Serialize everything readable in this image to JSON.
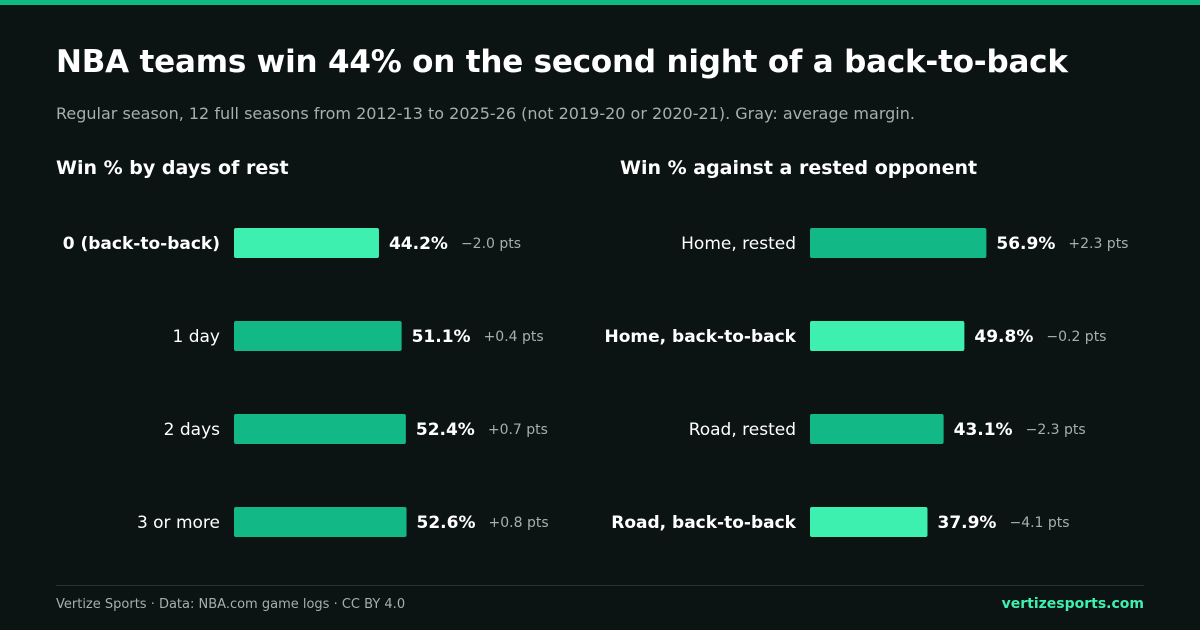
{
  "title": "NBA teams win 44% on the second night of a back-to-back",
  "subtitle": "Regular season, 12 full seasons from 2012-13 to 2025-26 (not 2019-20 or 2020-21). Gray: average margin.",
  "colors": {
    "background": "#0b1412",
    "accent": "#10b981",
    "highlight": "#3ef0b0",
    "bar_default": "#12b886",
    "bar_highlight": "#3ef0b0",
    "muted_text": "#a7afab"
  },
  "chart_data": [
    {
      "type": "bar",
      "orientation": "horizontal",
      "title": "Win % by days of rest",
      "categories": [
        "0 (back-to-back)",
        "1 day",
        "2 days",
        "3 or more"
      ],
      "values": [
        44.2,
        51.1,
        52.4,
        52.6
      ],
      "value_labels": [
        "44.2%",
        "51.1%",
        "52.4%",
        "52.6%"
      ],
      "margins": [
        "−2.0 pts",
        "+0.4 pts",
        "+0.7 pts",
        "+0.8 pts"
      ],
      "highlighted": [
        true,
        false,
        false,
        false
      ]
    },
    {
      "type": "bar",
      "orientation": "horizontal",
      "title": "Win % against a rested opponent",
      "categories": [
        "Home, rested",
        "Home, back-to-back",
        "Road, rested",
        "Road, back-to-back"
      ],
      "values": [
        56.9,
        49.8,
        43.1,
        37.9
      ],
      "value_labels": [
        "56.9%",
        "49.8%",
        "43.1%",
        "37.9%"
      ],
      "margins": [
        "+2.3 pts",
        "−0.2 pts",
        "−2.3 pts",
        "−4.1 pts"
      ],
      "highlighted": [
        false,
        true,
        false,
        true
      ]
    }
  ],
  "footer": {
    "credit": "Vertize Sports · Data: NBA.com game logs · CC BY 4.0",
    "site": "vertizesports.com"
  }
}
